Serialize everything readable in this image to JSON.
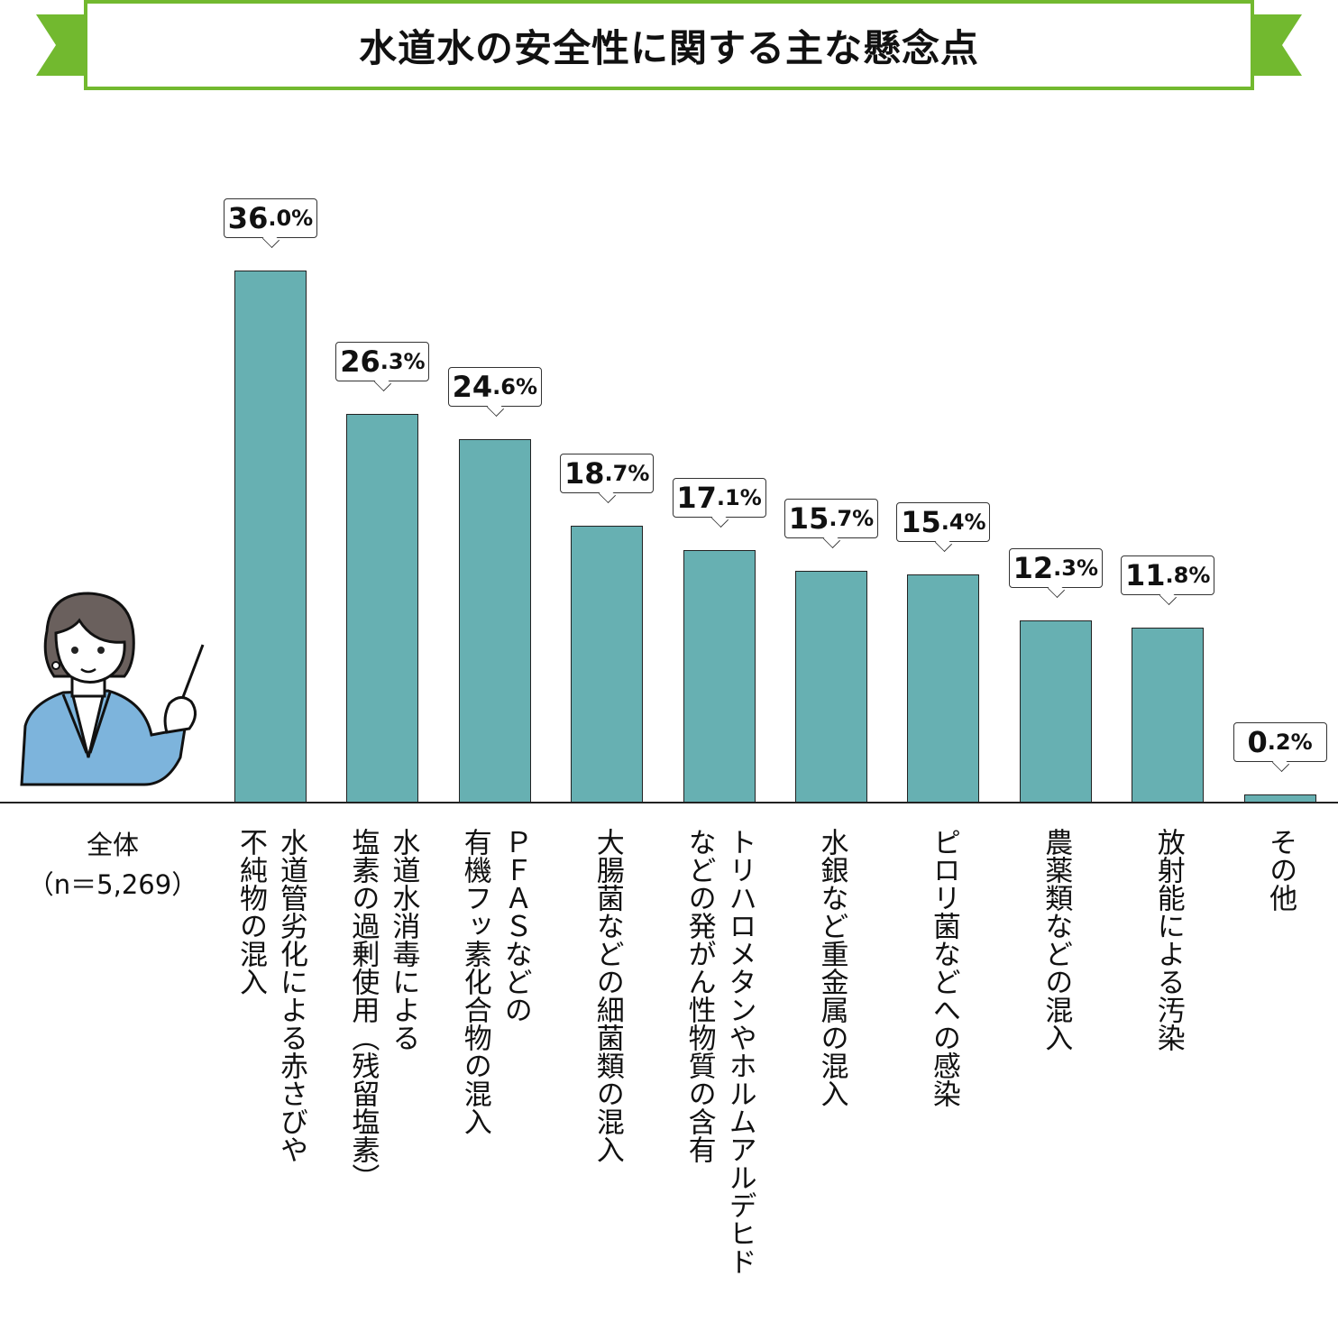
{
  "title": "水道水の安全性に関する主な懸念点",
  "colors": {
    "bar": "#67b0b2",
    "ribbon": "#72b92f",
    "suit": "#7db4dc",
    "hair": "#6a605d"
  },
  "chart_data": {
    "type": "bar",
    "title": "水道水の安全性に関する主な懸念点",
    "group_label": [
      "全体",
      "（n＝5,269）"
    ],
    "unit": "%",
    "categories": [
      [
        "水道管劣化による赤さびや",
        "不純物の混入"
      ],
      [
        "水道水消毒による",
        "塩素の過剰使用（残留塩素）"
      ],
      [
        "ＰＦＡＳなどの",
        "有機フッ素化合物の混入"
      ],
      [
        "大腸菌などの細菌類の混入"
      ],
      [
        "トリハロメタンやホルムアルデヒド",
        "などの発がん性物質の含有"
      ],
      [
        "水銀など重金属の混入"
      ],
      [
        "ピロリ菌などへの感染"
      ],
      [
        "農薬類などの混入"
      ],
      [
        "放射能による汚染"
      ],
      [
        "その他"
      ]
    ],
    "values": [
      36.0,
      26.3,
      24.6,
      18.7,
      17.1,
      15.7,
      15.4,
      12.3,
      11.8,
      0.2
    ],
    "value_labels": [
      [
        "36",
        ".0%"
      ],
      [
        "26",
        ".3%"
      ],
      [
        "24",
        ".6%"
      ],
      [
        "18",
        ".7%"
      ],
      [
        "17",
        ".1%"
      ],
      [
        "15",
        ".7%"
      ],
      [
        "15",
        ".4%"
      ],
      [
        "12",
        ".3%"
      ],
      [
        "11",
        ".8%"
      ],
      [
        "0",
        ".2%"
      ]
    ],
    "ylim": [
      0,
      40
    ],
    "grid": false
  }
}
